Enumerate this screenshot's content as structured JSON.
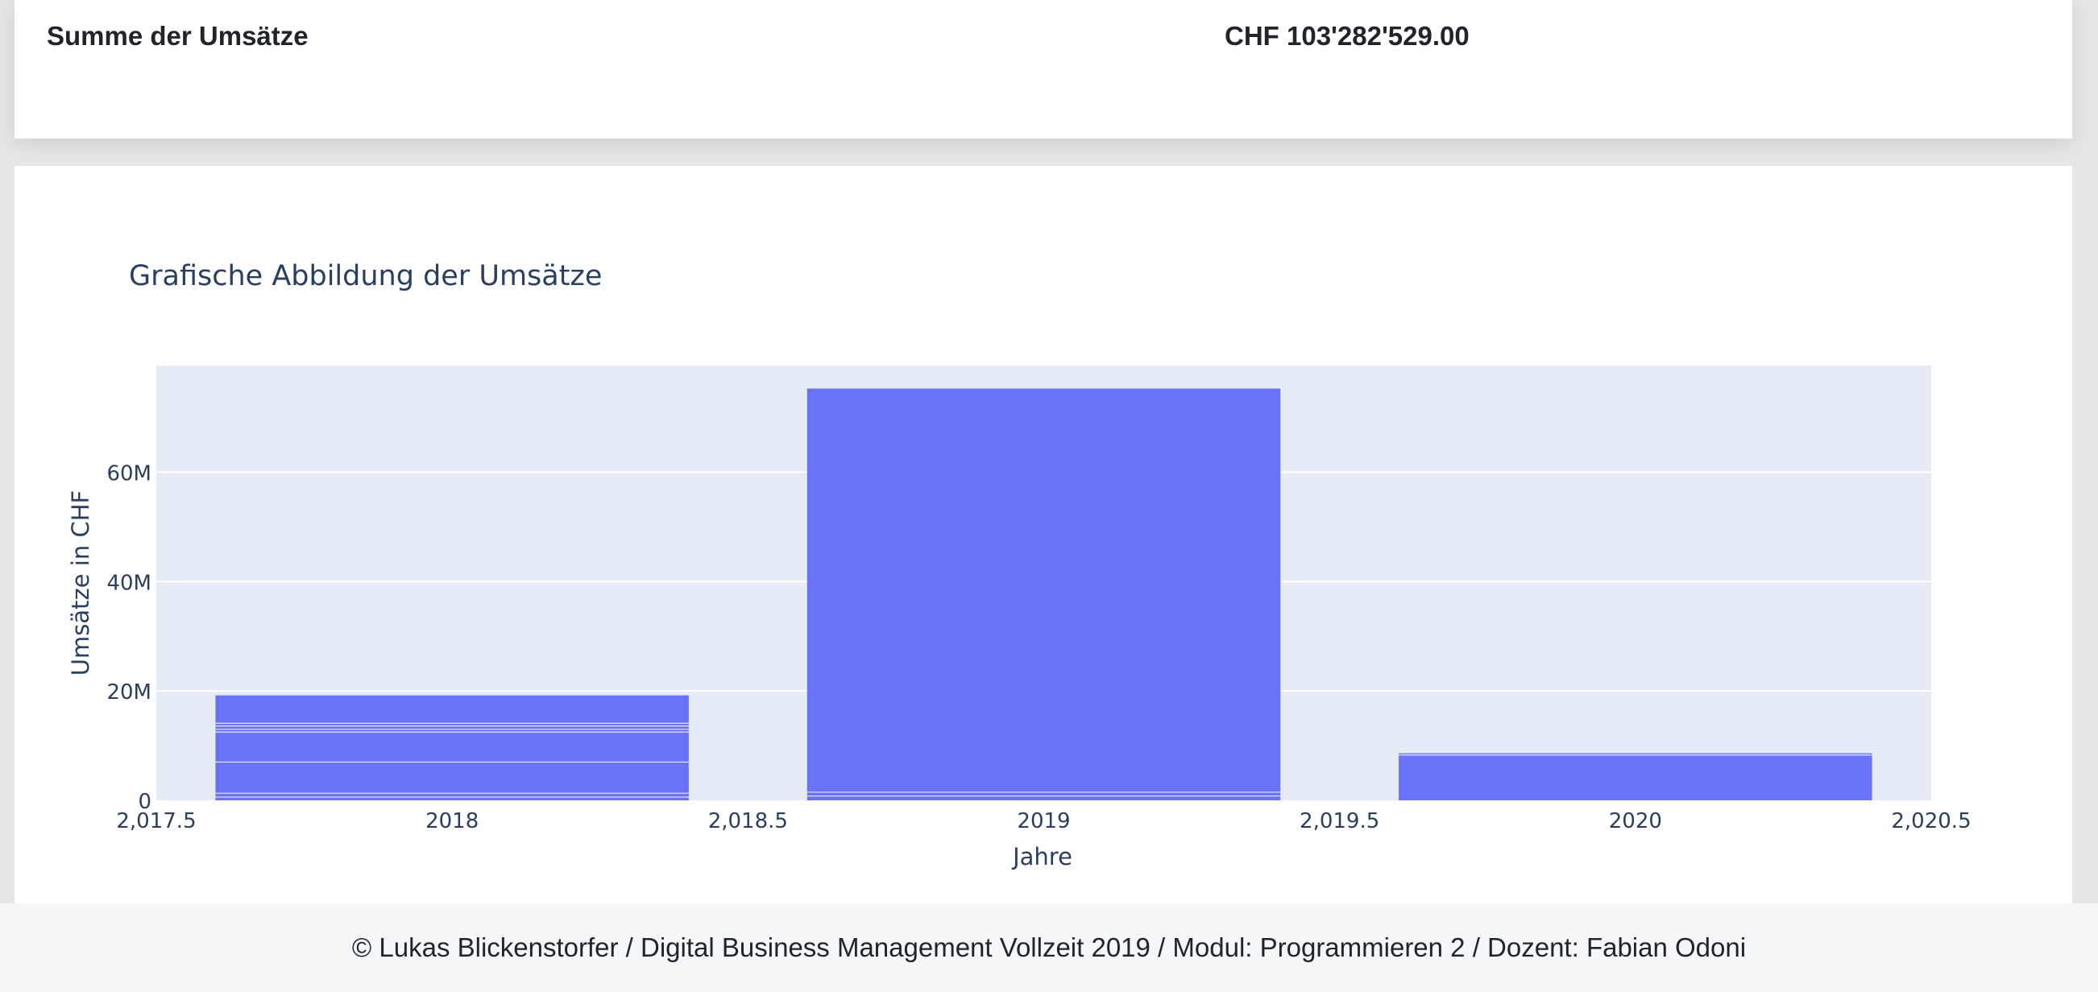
{
  "summary": {
    "label": "Summe der Umsätze",
    "value": "CHF 103'282'529.00"
  },
  "chart_data": {
    "type": "bar",
    "title": "Grafische Abbildung der Umsätze",
    "xlabel": "Jahre",
    "ylabel": "Umsätze in CHF",
    "xlim": [
      2017.5,
      2020.5
    ],
    "ylim": [
      0,
      79500000
    ],
    "x_ticks": [
      {
        "value": 2017.5,
        "label": "2,017.5"
      },
      {
        "value": 2018,
        "label": "2018"
      },
      {
        "value": 2018.5,
        "label": "2,018.5"
      },
      {
        "value": 2019,
        "label": "2019"
      },
      {
        "value": 2019.5,
        "label": "2,019.5"
      },
      {
        "value": 2020,
        "label": "2020"
      },
      {
        "value": 2020.5,
        "label": "2,020.5"
      }
    ],
    "y_ticks": [
      {
        "value": 0,
        "label": "0"
      },
      {
        "value": 20000000,
        "label": "20M"
      },
      {
        "value": 40000000,
        "label": "40M"
      },
      {
        "value": 60000000,
        "label": "60M"
      }
    ],
    "bar_width": 0.8,
    "categories": [
      "2018",
      "2019",
      "2020"
    ],
    "values": [
      19200000,
      75300000,
      8600000
    ],
    "stack_segments": [
      {
        "x": 2018,
        "breaks": [
          600000,
          1300000,
          7000000,
          12500000,
          13000000,
          13600000,
          14100000
        ]
      },
      {
        "x": 2019,
        "breaks": [
          800000,
          1500000
        ]
      },
      {
        "x": 2020,
        "breaks": [
          8300000
        ]
      }
    ],
    "grid": true,
    "colors": {
      "bar": "#6a72f6",
      "plot_bg": "#e5ecf6",
      "grid": "#ffffff",
      "text": "#2a3f5f"
    }
  },
  "footer": {
    "text": "© Lukas Blickenstorfer / Digital Business Management Vollzeit 2019 / Modul: Programmieren 2 / Dozent: Fabian Odoni"
  }
}
